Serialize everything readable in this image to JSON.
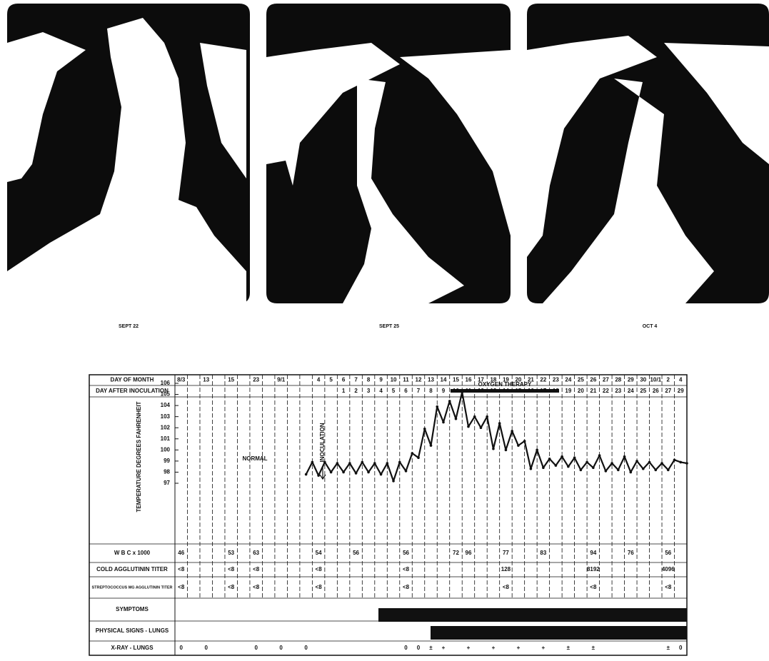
{
  "xrays": [
    {
      "caption": "SEPT 22"
    },
    {
      "caption": "SEPT 25"
    },
    {
      "caption": "OCT 4"
    }
  ],
  "chart": {
    "rows": [
      {
        "label": "DAY OF MONTH",
        "cells": [
          "8/3",
          null,
          "13",
          null,
          "15",
          null,
          "23",
          null,
          "9/1",
          null,
          null,
          "4",
          "5",
          "6",
          "7",
          "8",
          "9",
          "10",
          "11",
          "12",
          "13",
          "14",
          "15",
          "16",
          "17",
          "18",
          "19",
          "20",
          "21",
          "22",
          "23",
          "24",
          "25",
          "26",
          "27",
          "28",
          "29",
          "30",
          "10/1",
          "2",
          "4"
        ]
      },
      {
        "label": "DAY AFTER INOCULATION",
        "cells": [
          null,
          null,
          null,
          null,
          null,
          null,
          null,
          null,
          null,
          null,
          null,
          null,
          null,
          "1",
          "2",
          "3",
          "4",
          "5",
          "6",
          "7",
          "8",
          "9",
          "10",
          "11",
          "12",
          "13",
          "14",
          "15",
          "16",
          "17",
          "18",
          "19",
          "20",
          "21",
          "22",
          "23",
          "24",
          "25",
          "26",
          "27",
          "29"
        ]
      },
      {
        "label": "W B C x 1000",
        "cells": [
          "46",
          null,
          null,
          null,
          "53",
          null,
          "63",
          null,
          null,
          null,
          null,
          "54",
          null,
          null,
          "56",
          null,
          null,
          null,
          "56",
          null,
          null,
          null,
          "72",
          "96",
          null,
          null,
          "77",
          null,
          null,
          "83",
          null,
          null,
          null,
          "94",
          null,
          null,
          "76",
          null,
          null,
          "56",
          null
        ]
      },
      {
        "label": "COLD AGGLUTININ TITER",
        "cells": [
          "<8",
          null,
          null,
          null,
          "<8",
          null,
          "<8",
          null,
          null,
          null,
          null,
          "<8",
          null,
          null,
          null,
          null,
          null,
          null,
          "<8",
          null,
          null,
          null,
          null,
          null,
          null,
          null,
          "128",
          null,
          null,
          null,
          null,
          null,
          null,
          "8192",
          null,
          null,
          null,
          null,
          null,
          "4096",
          null
        ]
      },
      {
        "label": "STREPTOCOCCUS MG AGGLUTININ TITER",
        "cells": [
          "<8",
          null,
          null,
          null,
          "<8",
          null,
          "<8",
          null,
          null,
          null,
          null,
          "<8",
          null,
          null,
          null,
          null,
          null,
          null,
          "<8",
          null,
          null,
          null,
          null,
          null,
          null,
          null,
          "<8",
          null,
          null,
          null,
          null,
          null,
          null,
          "<8",
          null,
          null,
          null,
          null,
          null,
          "<8",
          null
        ]
      },
      {
        "label": "SYMPTOMS",
        "cells": []
      },
      {
        "label": "PHYSICAL SIGNS - LUNGS",
        "cells": []
      },
      {
        "label": "X-RAY - LUNGS",
        "cells": [
          "0",
          null,
          "0",
          null,
          null,
          null,
          "0",
          null,
          "0",
          null,
          "0",
          null,
          null,
          null,
          null,
          null,
          null,
          null,
          "0",
          "0",
          "±",
          "+",
          null,
          "+",
          null,
          "+",
          null,
          "+",
          null,
          "+",
          null,
          "±",
          null,
          "±",
          null,
          null,
          null,
          null,
          null,
          "±",
          "0"
        ]
      }
    ],
    "temperature": {
      "label": "TEMPERATURE DEGREES FAHRENHEIT",
      "yticks": [
        97,
        98,
        99,
        100,
        101,
        102,
        103,
        104,
        105,
        106
      ],
      "readings": [
        97.8,
        98.9,
        97.7,
        98.9,
        98.0,
        98.8,
        98.0,
        98.8,
        97.9,
        98.9,
        98.0,
        98.8,
        97.8,
        98.8,
        97.2,
        98.9,
        98.1,
        99.7,
        99.3,
        101.9,
        100.4,
        103.9,
        102.5,
        104.4,
        102.8,
        105.2,
        102.1,
        103.0,
        102.0,
        103.0,
        100.1,
        102.4,
        100.0,
        101.7,
        100.4,
        100.8,
        98.3,
        100.0,
        98.4,
        99.2,
        98.6,
        99.4,
        98.5,
        99.3,
        98.2,
        98.9,
        98.4,
        99.5,
        98.1,
        98.8,
        98.2,
        99.4,
        98.0,
        99.0,
        98.3,
        98.9,
        98.2,
        98.8,
        98.2,
        99.1,
        98.9,
        98.8
      ]
    },
    "annotations": {
      "normal": "NORMAL",
      "inoculation": "INOCULATION",
      "oxygen": "OXYGEN THERAPY"
    }
  }
}
